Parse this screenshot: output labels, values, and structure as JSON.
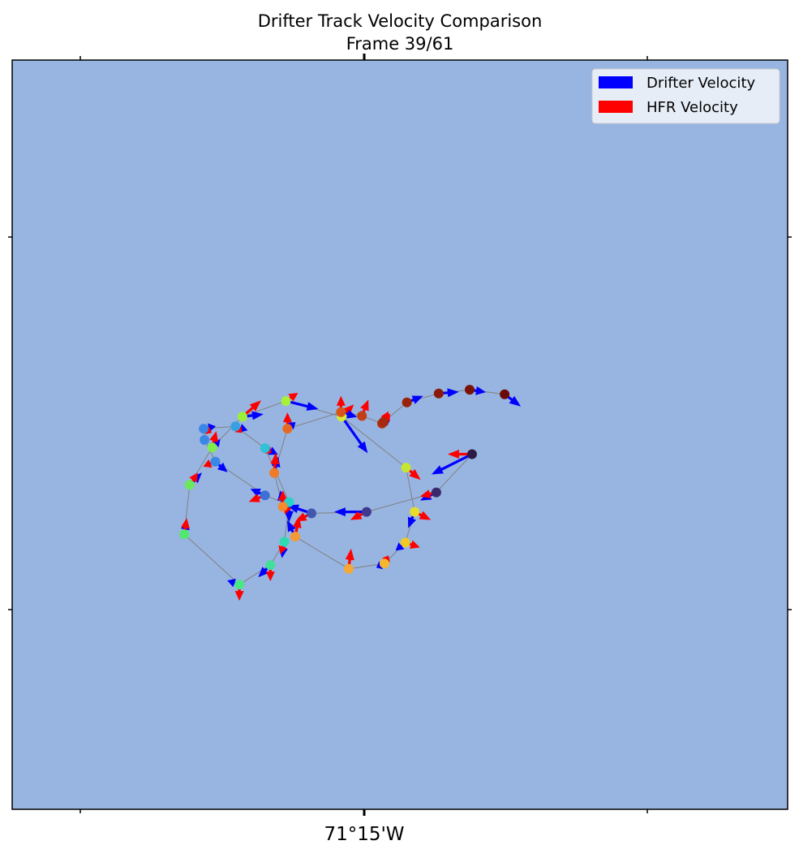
{
  "chart_data": {
    "type": "quiver",
    "title": "Drifter Track Velocity Comparison",
    "subtitle": "Frame 39/61",
    "xlabel": "",
    "ylabel": "",
    "x_tick_labels": [
      "",
      "71°15'W",
      ""
    ],
    "y_tick_labels": [
      "",
      ""
    ],
    "xlim": [
      0,
      100
    ],
    "ylim": [
      0,
      100
    ],
    "grid": false,
    "background_color": "#98b5e1",
    "legend": {
      "placement": "top-right",
      "entries": [
        {
          "label": "Drifter Velocity",
          "color": "#0000ff"
        },
        {
          "label": "HFR Velocity",
          "color": "#ff0000"
        }
      ]
    },
    "series": [
      {
        "name": "Drifter Velocity",
        "color": "#0000ff"
      },
      {
        "name": "HFR Velocity",
        "color": "#ff0000"
      }
    ],
    "track": [
      {
        "x": 59.3,
        "y": 47.4,
        "c": "#2e1a46",
        "du": -5,
        "dv": -2.5,
        "hu": -3,
        "hv": 0
      },
      {
        "x": 54.7,
        "y": 42.3,
        "c": "#3a2a6b",
        "du": -2,
        "dv": -1,
        "hu": -2,
        "hv": -0.5
      },
      {
        "x": 45.7,
        "y": 39.7,
        "c": "#3f3a8f",
        "du": -4,
        "dv": 0,
        "hu": -2,
        "hv": -1
      },
      {
        "x": 38.6,
        "y": 39.5,
        "c": "#4257b0",
        "du": -3,
        "dv": 1,
        "hu": -2,
        "hv": -1
      },
      {
        "x": 32.6,
        "y": 41.9,
        "c": "#3f6fd6",
        "du": -1.8,
        "dv": 0.8,
        "hu": -2,
        "hv": -0.8
      },
      {
        "x": 26.2,
        "y": 46.4,
        "c": "#3a87e6",
        "du": 1.5,
        "dv": -1.3,
        "hu": -1.5,
        "hv": -0.6
      },
      {
        "x": 24.8,
        "y": 49.3,
        "c": "#3a87e6",
        "du": 0,
        "dv": 0,
        "hu": -0.5,
        "hv": 0
      },
      {
        "x": 24.7,
        "y": 50.8,
        "c": "#3a87e6",
        "du": 1.5,
        "dv": 0.3,
        "hu": 1,
        "hv": -0.5
      },
      {
        "x": 28.8,
        "y": 51.1,
        "c": "#38a0e0",
        "du": 1.5,
        "dv": -0.5,
        "hu": 0.8,
        "hv": -0.8
      },
      {
        "x": 32.6,
        "y": 48.2,
        "c": "#30c0d8",
        "du": 1.6,
        "dv": -0.8,
        "hu": 0.8,
        "hv": -0.6
      },
      {
        "x": 35.7,
        "y": 41.0,
        "c": "#28d2c8",
        "du": 0,
        "dv": -2.5,
        "hu": -0.5,
        "hv": -1.5
      },
      {
        "x": 35.1,
        "y": 35.7,
        "c": "#2fd8b0",
        "du": -0.3,
        "dv": -2,
        "hu": -0.5,
        "hv": -1.5
      },
      {
        "x": 33.3,
        "y": 32.6,
        "c": "#40e098",
        "du": -1.5,
        "dv": -1.5,
        "hu": 0,
        "hv": -2
      },
      {
        "x": 29.3,
        "y": 30.0,
        "c": "#4ae884",
        "du": -1.5,
        "dv": 0.5,
        "hu": 0,
        "hv": -2
      },
      {
        "x": 22.2,
        "y": 36.7,
        "c": "#52e870",
        "du": 0.3,
        "dv": 1.5,
        "hu": 0.3,
        "hv": 2
      },
      {
        "x": 22.9,
        "y": 43.3,
        "c": "#6aea5a",
        "du": 1.5,
        "dv": 1.5,
        "hu": 1,
        "hv": 1.5
      },
      {
        "x": 25.8,
        "y": 48.3,
        "c": "#7eec4a",
        "du": 1,
        "dv": 1,
        "hu": 0.5,
        "hv": 2
      },
      {
        "x": 29.7,
        "y": 52.4,
        "c": "#9aef3a",
        "du": 2.6,
        "dv": 0.3,
        "hu": 2.3,
        "hv": 2
      },
      {
        "x": 35.3,
        "y": 54.5,
        "c": "#a8f03a",
        "du": 4,
        "dv": -1,
        "hu": 1.5,
        "hv": 1
      },
      {
        "x": 42.5,
        "y": 52.4,
        "c": "#d6ec34",
        "du": 3.2,
        "dv": -4.5,
        "hu": 1.5,
        "hv": 1.5
      },
      {
        "x": 50.8,
        "y": 45.6,
        "c": "#c6e630",
        "du": 0,
        "dv": 0,
        "hu": 1.8,
        "hv": -1.5
      },
      {
        "x": 51.9,
        "y": 39.7,
        "c": "#e8dc2c",
        "du": -0.8,
        "dv": -2,
        "hu": 2,
        "hv": -1
      },
      {
        "x": 50.7,
        "y": 35.6,
        "c": "#f0c82a",
        "du": -1.2,
        "dv": -1,
        "hu": 1.8,
        "hv": -0.6
      },
      {
        "x": 48.0,
        "y": 32.8,
        "c": "#f4b830",
        "du": -1,
        "dv": -0.5,
        "hu": 0.5,
        "hv": 1
      },
      {
        "x": 43.4,
        "y": 32.1,
        "c": "#f5a835",
        "du": 0,
        "dv": 0,
        "hu": 0.3,
        "hv": 2.5
      },
      {
        "x": 36.5,
        "y": 36.4,
        "c": "#f49a35",
        "du": -1,
        "dv": 2,
        "hu": 0.5,
        "hv": 2.5
      },
      {
        "x": 34.9,
        "y": 40.4,
        "c": "#f38a30",
        "du": -0.3,
        "dv": 2,
        "hu": 0,
        "hv": 2
      },
      {
        "x": 33.8,
        "y": 44.9,
        "c": "#f07a28",
        "du": 0.5,
        "dv": 2,
        "hu": 0.2,
        "hv": 2.5
      },
      {
        "x": 35.5,
        "y": 50.8,
        "c": "#e86a20",
        "du": 1,
        "dv": 0.8,
        "hu": 0,
        "hv": 2
      },
      {
        "x": 42.4,
        "y": 53.0,
        "c": "#d8541a",
        "du": 2,
        "dv": -0.6,
        "hu": 0,
        "hv": 2
      },
      {
        "x": 45.1,
        "y": 52.5,
        "c": "#c23e14",
        "du": 0,
        "dv": 0,
        "hu": 0.8,
        "hv": 2
      },
      {
        "x": 47.7,
        "y": 51.5,
        "c": "#b0300e",
        "du": 1,
        "dv": 0.5,
        "hu": 0.8,
        "hv": 1.5
      },
      {
        "x": 47.9,
        "y": 51.7,
        "c": "#a8280c",
        "du": 0,
        "dv": 0,
        "hu": 0.8,
        "hv": 1
      },
      {
        "x": 50.9,
        "y": 54.3,
        "c": "#9a220a",
        "du": 2,
        "dv": 0.8,
        "hu": 0,
        "hv": 0
      },
      {
        "x": 55.0,
        "y": 55.5,
        "c": "#8a1a08",
        "du": 2.5,
        "dv": 0.2,
        "hu": 0,
        "hv": 0
      },
      {
        "x": 59.0,
        "y": 56.0,
        "c": "#7a1206",
        "du": 2,
        "dv": -0.3,
        "hu": 0,
        "hv": 0
      },
      {
        "x": 63.5,
        "y": 55.4,
        "c": "#6a0a06",
        "du": 2,
        "dv": -1.5,
        "hu": 0,
        "hv": 0
      }
    ]
  }
}
